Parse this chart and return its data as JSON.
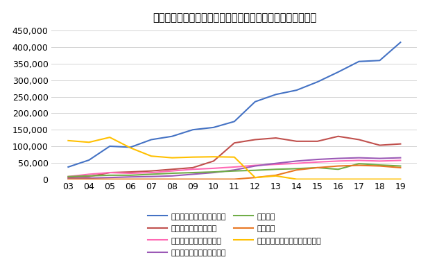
{
  "title": "ライフサポート協会　障がい事業部収入変遷（単位：千円）",
  "x_labels": [
    "03",
    "04",
    "05",
    "06",
    "07",
    "08",
    "09",
    "10",
    "11",
    "12",
    "13",
    "14",
    "15",
    "16",
    "17",
    "18",
    "19"
  ],
  "series": [
    {
      "name": "生活介護・就労・自立訓練",
      "color": "#4472C4",
      "data": [
        37000,
        58000,
        100000,
        97000,
        120000,
        130000,
        150000,
        157000,
        175000,
        235000,
        257000,
        270000,
        295000,
        325000,
        357000,
        360000,
        415000
      ]
    },
    {
      "name": "放課後デイ・児童発達",
      "color": "#C0504D",
      "data": [
        5000,
        8000,
        20000,
        22000,
        25000,
        30000,
        35000,
        55000,
        110000,
        120000,
        125000,
        115000,
        115000,
        130000,
        120000,
        103000,
        107000
      ]
    },
    {
      "name": "ヘルパー（移動支援等）",
      "color": "#FF69B4",
      "data": [
        8000,
        15000,
        20000,
        18000,
        20000,
        25000,
        30000,
        33000,
        37000,
        42000,
        45000,
        48000,
        52000,
        55000,
        57000,
        55000,
        57000
      ]
    },
    {
      "name": "グループホーム・短期入所",
      "color": "#9B59B6",
      "data": [
        2000,
        3000,
        5000,
        7000,
        8000,
        10000,
        15000,
        20000,
        28000,
        40000,
        48000,
        55000,
        60000,
        63000,
        65000,
        63000,
        65000
      ]
    },
    {
      "name": "相談支援",
      "color": "#70AD47",
      "data": [
        8000,
        10000,
        12000,
        12000,
        15000,
        18000,
        20000,
        22000,
        25000,
        27000,
        30000,
        32000,
        35000,
        30000,
        47000,
        43000,
        40000
      ]
    },
    {
      "name": "泉北拠点",
      "color": "#E87722",
      "data": [
        0,
        0,
        0,
        0,
        0,
        0,
        0,
        0,
        0,
        5000,
        12000,
        28000,
        35000,
        40000,
        42000,
        40000,
        35000
      ]
    },
    {
      "name": "障害者会館（大阪市条例施設）",
      "color": "#FFC000",
      "data": [
        117000,
        112000,
        127000,
        95000,
        70000,
        65000,
        67000,
        68000,
        67000,
        5000,
        10000,
        0,
        0,
        0,
        0,
        0,
        0
      ]
    }
  ],
  "ylim": [
    0,
    450000
  ],
  "yticks": [
    0,
    50000,
    100000,
    150000,
    200000,
    250000,
    300000,
    350000,
    400000,
    450000
  ],
  "background_color": "#FFFFFF",
  "grid_color": "#D3D3D3"
}
